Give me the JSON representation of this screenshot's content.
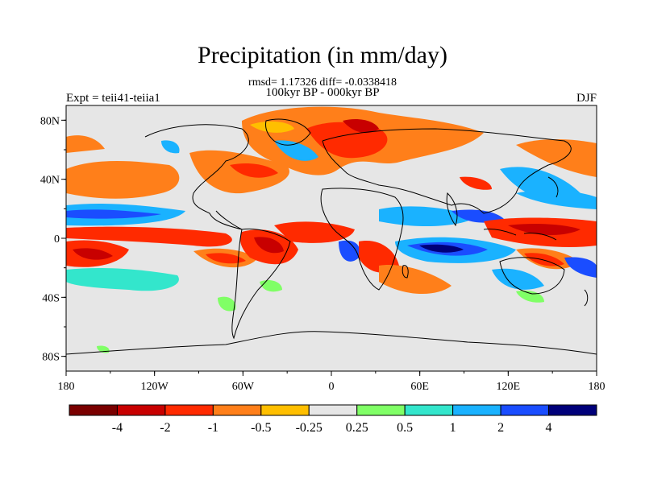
{
  "title": "Precipitation (in mm/day)",
  "stats_line": "rmsd= 1.17326 diff= -0.0338418",
  "subtitle": "100kyr BP - 000kyr BP",
  "left_label": "Expt = teii41-teiia1",
  "right_label": "DJF",
  "colors": {
    "ocean_bg": "#e6e6e6",
    "coast": "#000000"
  },
  "map": {
    "lat_ticks": [
      "80N",
      "40N",
      "0",
      "40S",
      "80S"
    ],
    "lon_ticks": [
      "180",
      "120W",
      "60W",
      "0",
      "60E",
      "120E",
      "180"
    ]
  },
  "colorbar": {
    "colors": [
      "#7a0000",
      "#c80000",
      "#ff2a00",
      "#ff7f1a",
      "#ffbf00",
      "#e6e6e6",
      "#80ff66",
      "#33e6cc",
      "#1ab2ff",
      "#1a4dff",
      "#00007a"
    ],
    "labels": [
      "-4",
      "-2",
      "-1",
      "-0.5",
      "-0.25",
      "0.25",
      "0.5",
      "1",
      "2",
      "4"
    ]
  }
}
